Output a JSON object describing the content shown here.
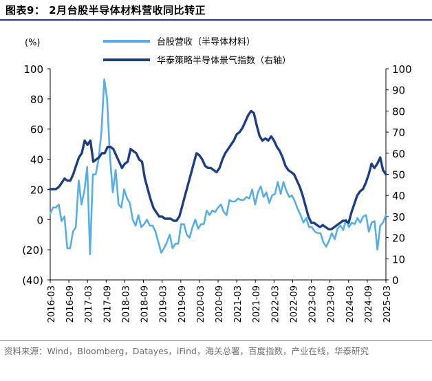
{
  "title": "图表9： 2月台股半导体材料营收同比转正",
  "source": "资料来源：Wind，Bloomberg，Datayes，iFind，海关总署，百度指数，产业在线，华泰研究",
  "chart_data": {
    "type": "line",
    "left_unit_label": "(%)",
    "left_axis": {
      "min": -40,
      "max": 100,
      "step": 20,
      "ticks": [
        "(40)",
        "(20)",
        "0",
        "20",
        "40",
        "60",
        "80",
        "100"
      ]
    },
    "right_axis": {
      "min": 0,
      "max": 100,
      "step": 10,
      "ticks": [
        "0",
        "10",
        "20",
        "30",
        "40",
        "50",
        "60",
        "70",
        "80",
        "90",
        "100"
      ]
    },
    "x_axis": {
      "start": "2016-03",
      "end": "2025-03",
      "tick_labels": [
        "2016-03",
        "2016-09",
        "2017-03",
        "2017-09",
        "2018-03",
        "2018-09",
        "2019-03",
        "2019-09",
        "2020-03",
        "2020-09",
        "2021-03",
        "2021-09",
        "2022-03",
        "2022-09",
        "2023-03",
        "2023-09",
        "2024-03",
        "2024-09",
        "2025-03"
      ]
    },
    "grid": false,
    "legend_position": "top-center",
    "series": [
      {
        "name": "台股营收（半导体材料）",
        "axis": "left",
        "color": "#56aee8",
        "values": [
          4,
          8,
          8,
          10,
          -1,
          2,
          -19,
          -19,
          -8,
          -5,
          26,
          10,
          19,
          35,
          -23,
          30,
          30,
          40,
          58,
          93,
          80,
          42,
          18,
          33,
          10,
          8,
          20,
          14,
          11,
          0,
          -4,
          3,
          -5,
          -3,
          0,
          -4,
          -4,
          -8,
          -15,
          -22,
          -19,
          -15,
          -10,
          -19,
          -16,
          -16,
          -3,
          -3,
          -10,
          -12,
          -5,
          0,
          -6,
          -3,
          -3,
          6,
          3,
          6,
          5,
          8,
          10,
          5,
          3,
          13,
          12,
          12,
          14,
          13,
          13,
          15,
          14,
          20,
          10,
          18,
          22,
          15,
          18,
          11,
          16,
          17,
          25,
          17,
          25,
          19,
          15,
          16,
          12,
          7,
          3,
          -2,
          1,
          -5,
          -5,
          -8,
          -9,
          -9,
          -15,
          -18,
          -14,
          -9,
          -13,
          -6,
          -4,
          -7,
          0,
          -5,
          -2,
          -3,
          1,
          -2,
          2,
          3,
          -8,
          -2,
          -1,
          -20,
          -4,
          -2,
          3
        ]
      },
      {
        "name": "华泰策略半导体景气指数（右轴）",
        "axis": "right",
        "color": "#1c3e86",
        "values": [
          43,
          43,
          43,
          44,
          46,
          48,
          47,
          47,
          50,
          54,
          58,
          60,
          66,
          64,
          66,
          56,
          57,
          58,
          60,
          60,
          63,
          63,
          62,
          59,
          56,
          53,
          55,
          56,
          62,
          61,
          60,
          57,
          56,
          48,
          43,
          38,
          34,
          32,
          30,
          30,
          29,
          29,
          29,
          28,
          28,
          30,
          35,
          40,
          45,
          50,
          55,
          60,
          59,
          57,
          54,
          53,
          53,
          52,
          51,
          53,
          57,
          60,
          62,
          64,
          66,
          69,
          70,
          72,
          75,
          78,
          80,
          79,
          73,
          68,
          66,
          67,
          66,
          68,
          66,
          63,
          61,
          58,
          54,
          52,
          51,
          50,
          47,
          44,
          40,
          35,
          30,
          27,
          27,
          26,
          25,
          26,
          25,
          24,
          24,
          25,
          26,
          27,
          28,
          28,
          27,
          32,
          36,
          40,
          42,
          43,
          46,
          50,
          55,
          53,
          55,
          58,
          52,
          50
        ]
      }
    ]
  }
}
